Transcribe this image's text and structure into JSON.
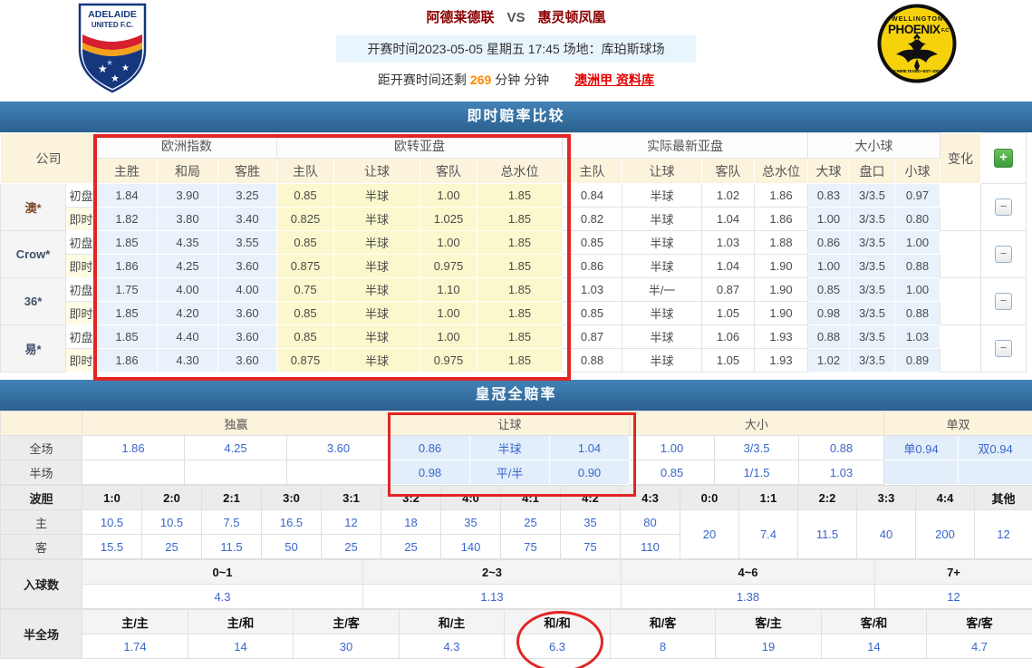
{
  "header": {
    "home_team": "阿德莱德联",
    "vs_label": "VS",
    "away_team": "惠灵顿凤凰",
    "match_info": "开赛时间2023-05-05 星期五 17:45  场地：库珀斯球场",
    "countdown_prefix": "距开赛时间还剩",
    "countdown_minutes": "269",
    "countdown_suffix": "分钟 分钟",
    "league_link": "澳洲甲 资料库",
    "home_logo": {
      "line1": "ADELAIDE",
      "line2": "UNITED F.C."
    },
    "away_logo": {
      "top": "WELLINGTON",
      "main": "PHOENIX",
      "fc": "F.C",
      "bottom": "E RERE TE KEO • EST • 2007"
    }
  },
  "odds_table": {
    "title": "即时赔率比较",
    "company_label": "公司",
    "groups": [
      "欧洲指数",
      "欧转亚盘",
      "实际最新亚盘",
      "大小球"
    ],
    "sub_headers": [
      "主胜",
      "和局",
      "客胜",
      "主队",
      "让球",
      "客队",
      "总水位",
      "主队",
      "让球",
      "客队",
      "总水位",
      "大球",
      "盘口",
      "小球"
    ],
    "change_label": "变化",
    "add_button_label": "+",
    "remove_button_label": "−",
    "initial_label": "初盘",
    "live_label": "即时",
    "rows": [
      {
        "company": "澳*",
        "color": "#7b4a2d",
        "initial": [
          "1.84",
          "3.90",
          "3.25",
          "0.85",
          "半球",
          "1.00",
          "1.85",
          "0.84",
          "半球",
          "1.02",
          "1.86",
          "0.83",
          "3/3.5",
          "0.97"
        ],
        "live": [
          "1.82",
          "3.80",
          "3.40",
          "0.825",
          "半球",
          "1.025",
          "1.85",
          "0.82",
          "半球",
          "1.04",
          "1.86",
          "1.00",
          "3/3.5",
          "0.80"
        ]
      },
      {
        "company": "Crow*",
        "color": "#3b5068",
        "initial": [
          "1.85",
          "4.35",
          "3.55",
          "0.85",
          "半球",
          "1.00",
          "1.85",
          "0.85",
          "半球",
          "1.03",
          "1.88",
          "0.86",
          "3/3.5",
          "1.00"
        ],
        "live": [
          "1.86",
          "4.25",
          "3.60",
          "0.875",
          "半球",
          "0.975",
          "1.85",
          "0.86",
          "半球",
          "1.04",
          "1.90",
          "1.00",
          "3/3.5",
          "0.88"
        ]
      },
      {
        "company": "36*",
        "color": "#3b5068",
        "initial": [
          "1.75",
          "4.00",
          "4.00",
          "0.75",
          "半球",
          "1.10",
          "1.85",
          "1.03",
          "半/一",
          "0.87",
          "1.90",
          "0.85",
          "3/3.5",
          "1.00"
        ],
        "live": [
          "1.85",
          "4.20",
          "3.60",
          "0.85",
          "半球",
          "1.00",
          "1.85",
          "0.85",
          "半球",
          "1.05",
          "1.90",
          "0.98",
          "3/3.5",
          "0.88"
        ]
      },
      {
        "company": "易*",
        "color": "#3b5068",
        "initial": [
          "1.85",
          "4.40",
          "3.60",
          "0.85",
          "半球",
          "1.00",
          "1.85",
          "0.87",
          "半球",
          "1.06",
          "1.93",
          "0.88",
          "3/3.5",
          "1.03"
        ],
        "live": [
          "1.86",
          "4.30",
          "3.60",
          "0.875",
          "半球",
          "0.975",
          "1.85",
          "0.88",
          "半球",
          "1.05",
          "1.93",
          "1.02",
          "3/3.5",
          "0.89"
        ]
      }
    ]
  },
  "crown_table": {
    "title": "皇冠全赔率",
    "groups": [
      "独赢",
      "让球",
      "大小",
      "单双"
    ],
    "rows": [
      {
        "label": "全场",
        "cells": [
          "1.86",
          "4.25",
          "3.60",
          "0.86",
          "半球",
          "1.04",
          "1.00",
          "3/3.5",
          "0.88",
          "单0.94",
          "双0.94"
        ]
      },
      {
        "label": "半场",
        "cells": [
          "",
          "",
          "",
          "0.98",
          "平/半",
          "0.90",
          "0.85",
          "1/1.5",
          "1.03",
          "",
          ""
        ]
      }
    ]
  },
  "correct_score": {
    "label": "波胆",
    "row_home": "主",
    "row_away": "客",
    "score_cols": [
      "1:0",
      "2:0",
      "2:1",
      "3:0",
      "3:1",
      "3:2",
      "4:0",
      "4:1",
      "4:2",
      "4:3"
    ],
    "home_odds": [
      "10.5",
      "10.5",
      "7.5",
      "16.5",
      "12",
      "18",
      "35",
      "25",
      "35",
      "80"
    ],
    "away_odds": [
      "15.5",
      "25",
      "11.5",
      "50",
      "25",
      "25",
      "140",
      "75",
      "75",
      "110"
    ],
    "draw_cols": [
      "0:0",
      "1:1",
      "2:2",
      "3:3",
      "4:4",
      "其他"
    ],
    "draw_odds": [
      "20",
      "7.4",
      "11.5",
      "40",
      "200",
      "12"
    ]
  },
  "total_goals": {
    "label": "入球数",
    "cols": [
      "0~1",
      "2~3",
      "4~6",
      "7+"
    ],
    "odds": [
      "4.3",
      "1.13",
      "1.38",
      "12"
    ]
  },
  "half_full": {
    "label": "半全场",
    "cols": [
      "主/主",
      "主/和",
      "主/客",
      "和/主",
      "和/和",
      "和/客",
      "客/主",
      "客/和",
      "客/客"
    ],
    "odds": [
      "1.74",
      "14",
      "30",
      "4.3",
      "6.3",
      "8",
      "19",
      "14",
      "4.7"
    ]
  },
  "colors": {
    "section_bar_blue": "#35689b",
    "annotation_red": "#e22525",
    "odds_link_blue": "#3a66cc",
    "live_label_red": "#e60000",
    "countdown_orange": "#ff8800",
    "team_title_maroon": "#8b0000",
    "header_cream": "#fbf3dc",
    "cell_light_blue": "#e9f2fb",
    "cell_yellow": "#fbf8cd"
  }
}
